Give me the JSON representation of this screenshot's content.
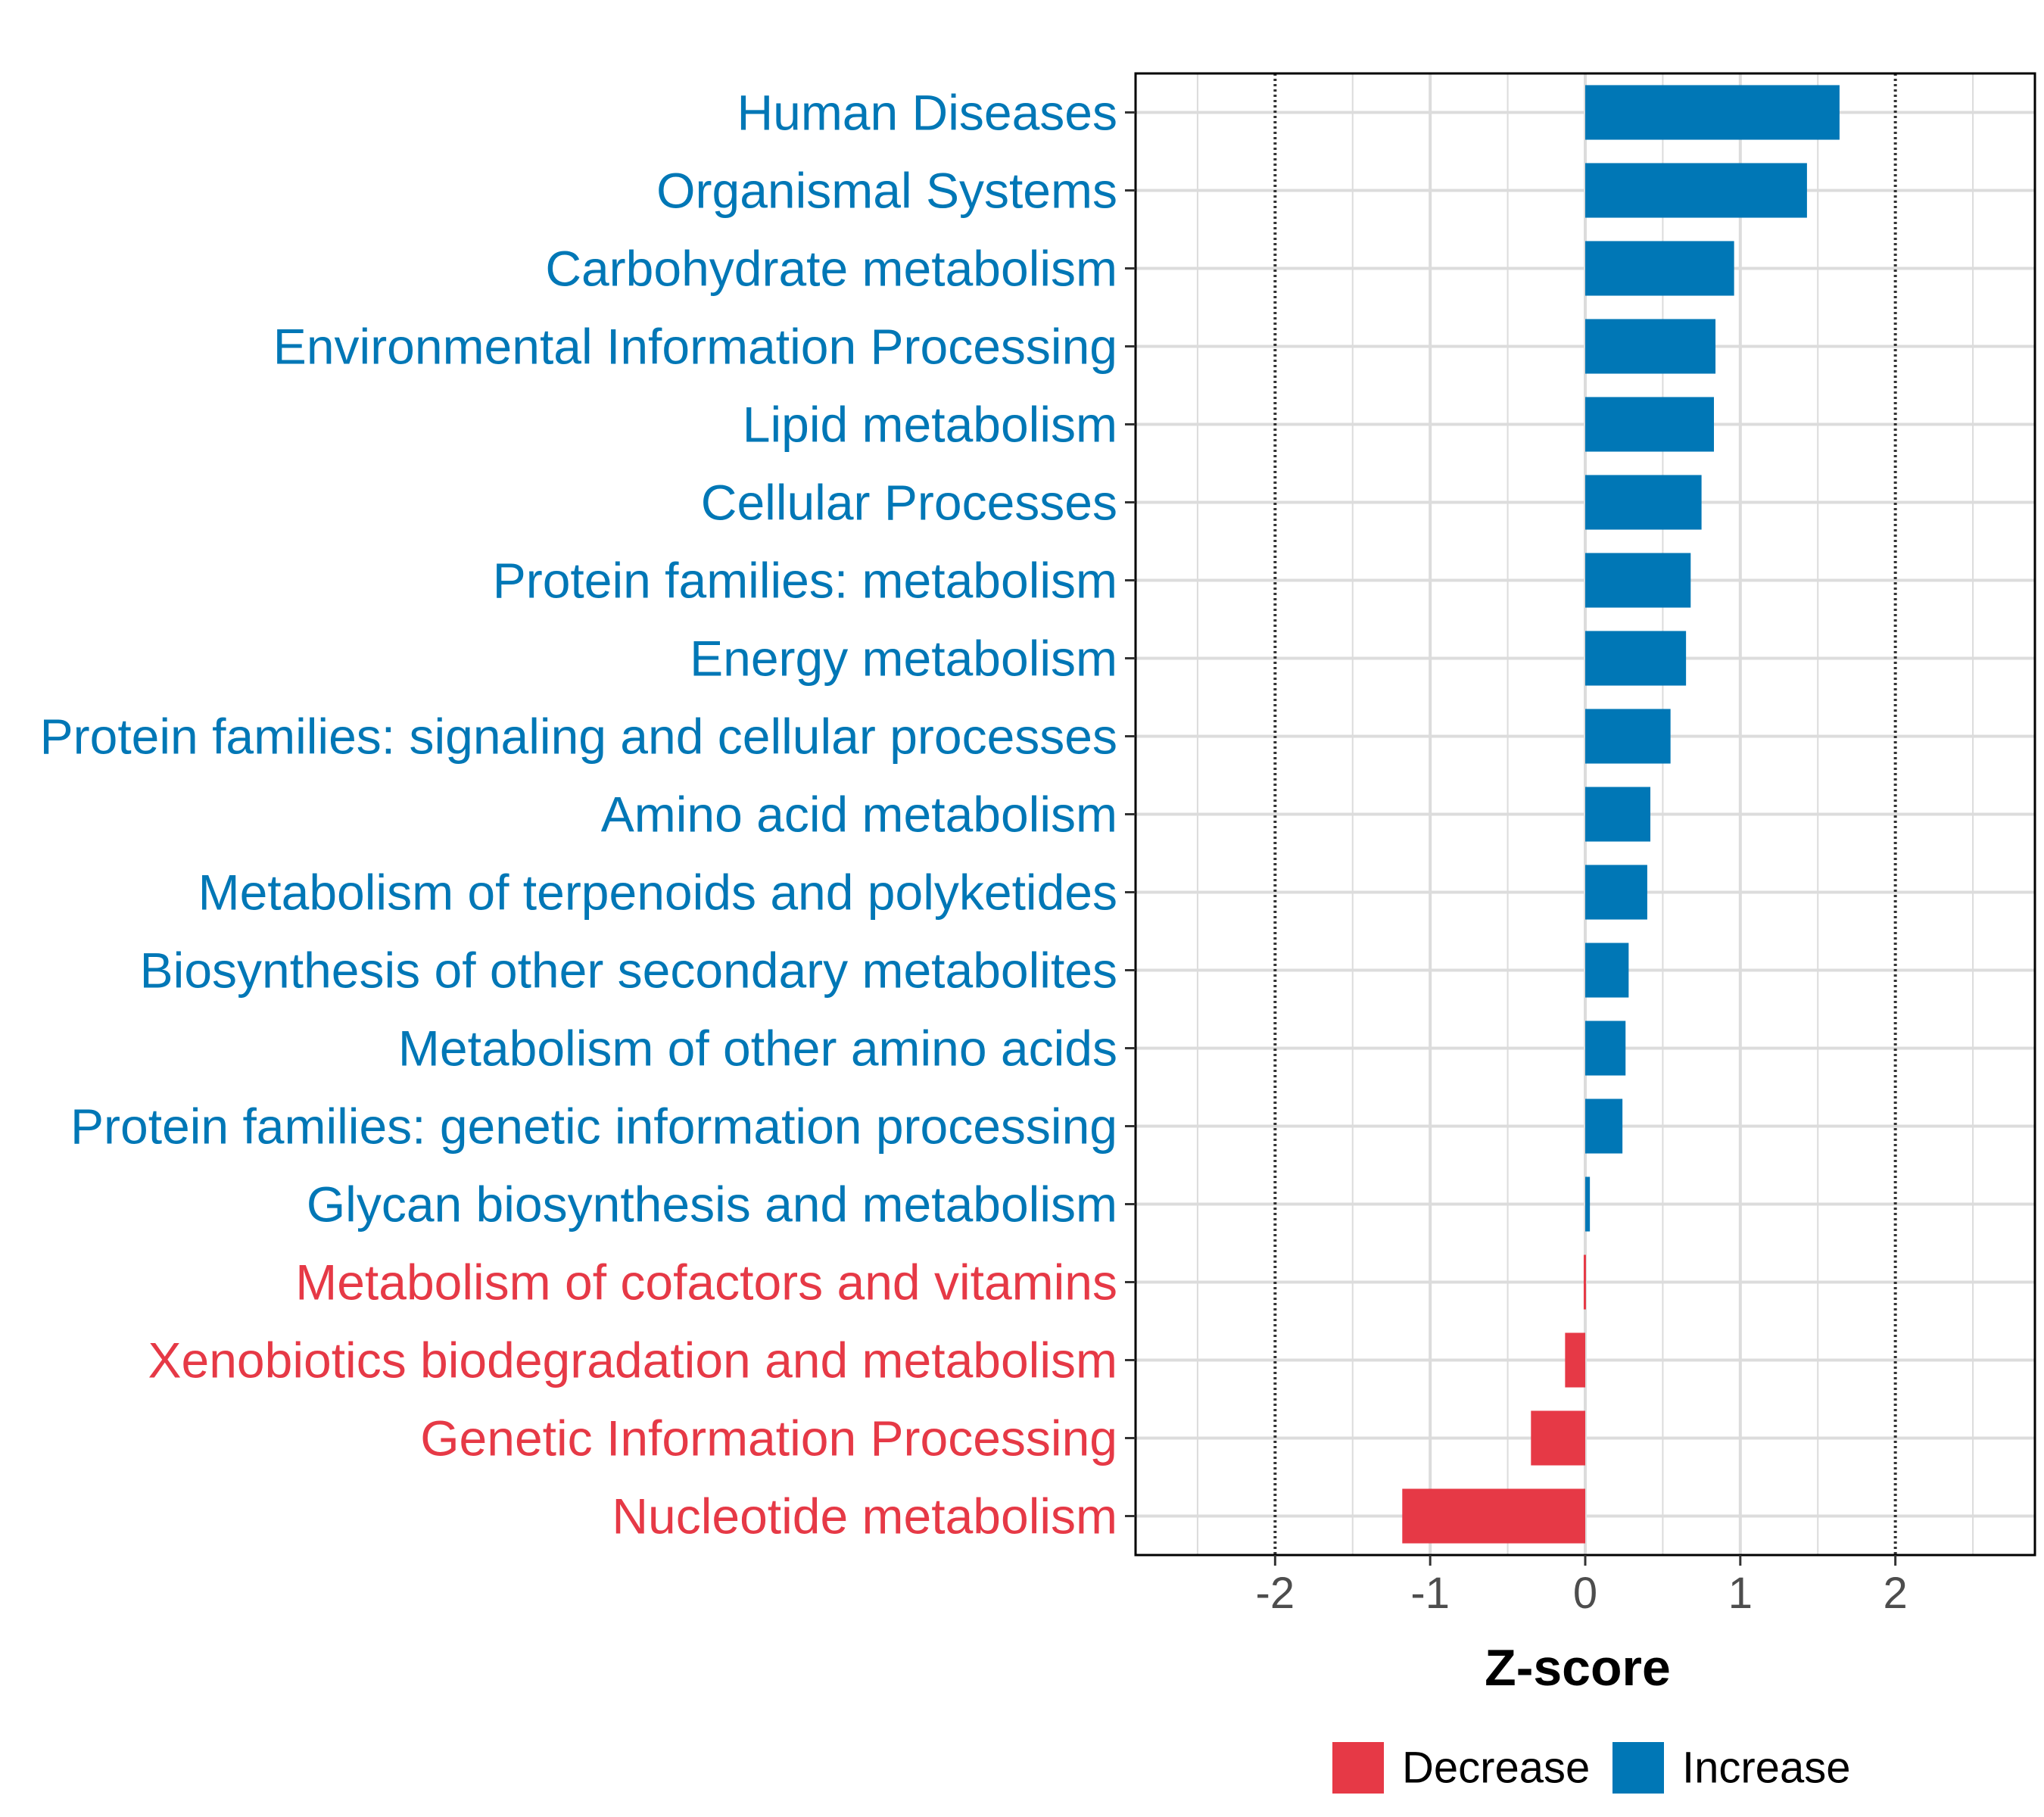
{
  "chart_data": {
    "type": "bar",
    "orientation": "horizontal",
    "title": "",
    "xlabel": "Z-score",
    "ylabel": "",
    "xlim": [
      -2.9,
      2.9
    ],
    "xticks": [
      "-2",
      "-1",
      "0",
      "1",
      "2"
    ],
    "reference_lines": [
      -2,
      2
    ],
    "grid": true,
    "categories": [
      "Human Diseases",
      "Organismal Systems",
      "Carbohydrate metabolism",
      "Environmental Information Processing",
      "Lipid metabolism",
      "Cellular Processes",
      "Protein families: metabolism",
      "Energy metabolism",
      "Protein families: signaling and cellular processes",
      "Amino acid metabolism",
      "Metabolism of terpenoids and polyketides",
      "Biosynthesis of other secondary metabolites",
      "Metabolism of other amino acids",
      "Protein families: genetic information processing",
      "Glycan biosynthesis and metabolism",
      "Metabolism of cofactors and vitamins",
      "Xenobiotics biodegradation and metabolism",
      "Genetic Information Processing",
      "Nucleotide metabolism"
    ],
    "values": [
      1.64,
      1.43,
      0.96,
      0.84,
      0.83,
      0.75,
      0.68,
      0.65,
      0.55,
      0.42,
      0.4,
      0.28,
      0.26,
      0.24,
      0.03,
      -0.01,
      -0.13,
      -0.35,
      -1.18
    ],
    "groups": [
      "Increase",
      "Increase",
      "Increase",
      "Increase",
      "Increase",
      "Increase",
      "Increase",
      "Increase",
      "Increase",
      "Increase",
      "Increase",
      "Increase",
      "Increase",
      "Increase",
      "Increase",
      "Decrease",
      "Decrease",
      "Decrease",
      "Decrease"
    ],
    "legend": {
      "position": "bottom",
      "entries": [
        {
          "label": "Decrease",
          "color": "#e63946"
        },
        {
          "label": "Increase",
          "color": "#0077b6"
        }
      ]
    },
    "colors": {
      "Decrease": "#e63946",
      "Increase": "#0077b6"
    }
  }
}
